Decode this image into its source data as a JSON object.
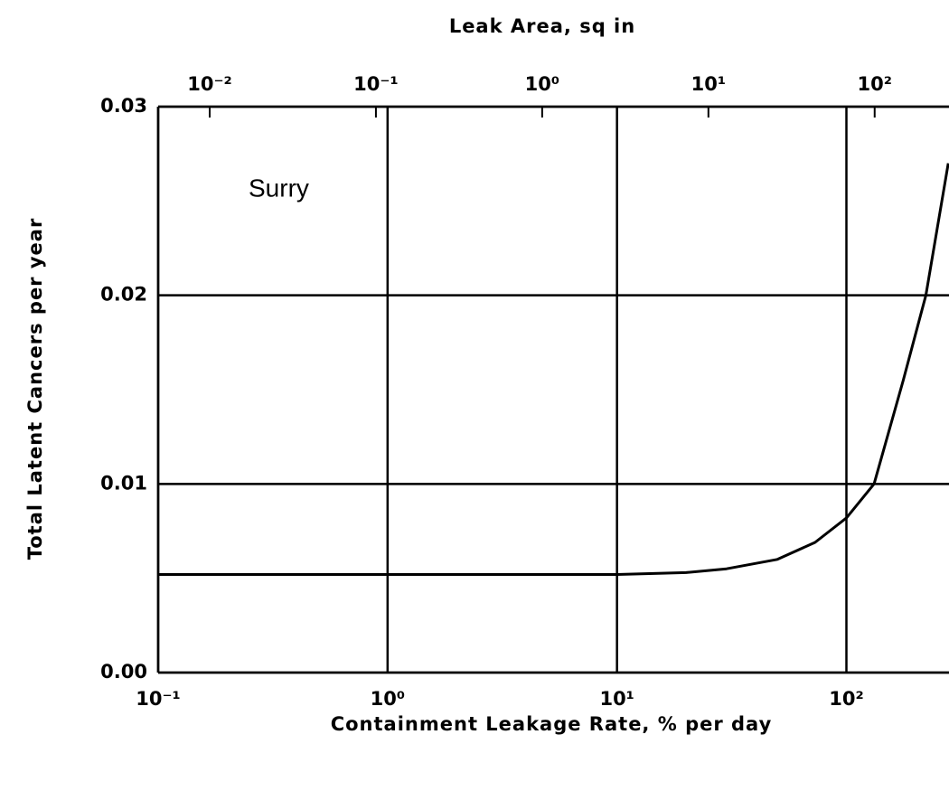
{
  "chart_data": {
    "type": "line",
    "x2label": "Leak Area, sq in",
    "xlabel": "Containment Leakage Rate, % per day",
    "ylabel": "Total Latent Cancers per year",
    "annotations": [
      "Surry"
    ],
    "xscale": "log",
    "x2scale": "log",
    "grid": true,
    "xlim": [
      0.1,
      280
    ],
    "xticks": [
      {
        "value": 0.1,
        "label": "10⁻¹"
      },
      {
        "value": 1,
        "label": "10⁰"
      },
      {
        "value": 10,
        "label": "10¹"
      },
      {
        "value": 100,
        "label": "10²"
      }
    ],
    "x2lim": [
      0.0049,
      280
    ],
    "x2ticks": [
      {
        "value": 0.01,
        "label": "10⁻²"
      },
      {
        "value": 0.1,
        "label": "10⁻¹"
      },
      {
        "value": 1,
        "label": "10⁰"
      },
      {
        "value": 10,
        "label": "10¹"
      },
      {
        "value": 100,
        "label": "10²"
      }
    ],
    "ylim": [
      0,
      0.03
    ],
    "yticks": [
      {
        "value": 0,
        "label": "0.00"
      },
      0.01,
      0.02,
      0.03
    ],
    "x": [
      0.1,
      10,
      20,
      30,
      50,
      73,
      100,
      132,
      177,
      222,
      278
    ],
    "series": [
      {
        "color": "#000000",
        "values": [
          0.0052,
          0.0052,
          0.0053,
          0.0055,
          0.006,
          0.0069,
          0.0082,
          0.01,
          0.0155,
          0.02,
          0.027
        ]
      }
    ]
  }
}
